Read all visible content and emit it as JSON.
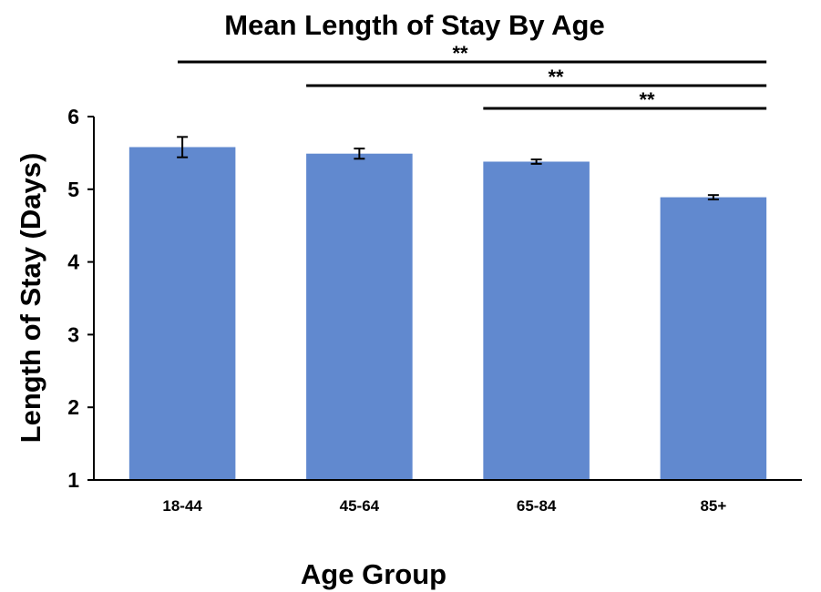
{
  "chart_data": {
    "type": "bar",
    "title": "Mean Length of Stay By Age",
    "xlabel": "Age Group",
    "ylabel": "Length of Stay (Days)",
    "categories": [
      "18-44",
      "45-64",
      "65-84",
      "85+"
    ],
    "values": [
      5.58,
      5.49,
      5.38,
      4.89
    ],
    "error": [
      0.14,
      0.07,
      0.03,
      0.03
    ],
    "ylim": [
      1,
      6
    ],
    "yticks": [
      "1",
      "2",
      "3",
      "4",
      "5",
      "6"
    ],
    "bar_color": "#6189cf",
    "grid": false,
    "significance": [
      {
        "from": "18-44",
        "to": "85+",
        "label": "**"
      },
      {
        "from": "45-64",
        "to": "85+",
        "label": "**"
      },
      {
        "from": "65-84",
        "to": "85+",
        "label": "**"
      }
    ]
  }
}
